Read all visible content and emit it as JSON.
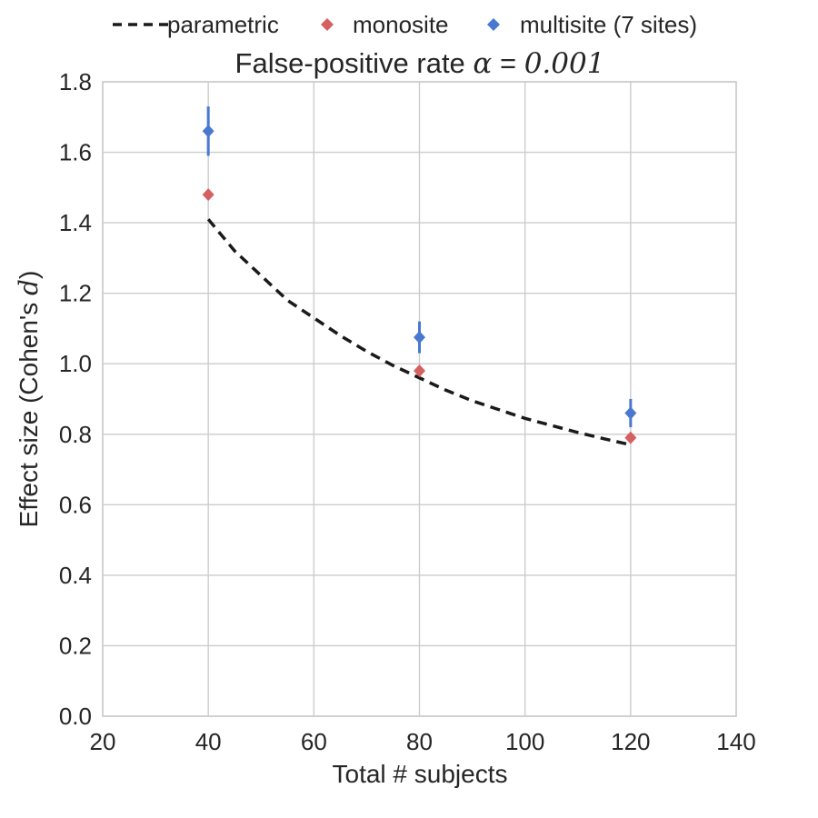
{
  "chart_data": {
    "type": "scatter",
    "title": {
      "prefix": "False-positive rate ",
      "symbol": "α",
      "equals": " = ",
      "value": "0.001"
    },
    "xlabel": "Total # subjects",
    "ylabel": {
      "prefix": "Effect size (Cohen's ",
      "symbol": "d",
      "suffix": ")"
    },
    "xlim": [
      20,
      140
    ],
    "ylim": [
      0.0,
      1.8
    ],
    "xticks": [
      20,
      40,
      60,
      80,
      100,
      120,
      140
    ],
    "xtick_labels": [
      "20",
      "40",
      "60",
      "80",
      "100",
      "120",
      "140"
    ],
    "yticks": [
      0.0,
      0.2,
      0.4,
      0.6,
      0.8,
      1.0,
      1.2,
      1.4,
      1.6,
      1.8
    ],
    "ytick_labels": [
      "0.0",
      "0.2",
      "0.4",
      "0.6",
      "0.8",
      "1.0",
      "1.2",
      "1.4",
      "1.6",
      "1.8"
    ],
    "grid": true,
    "legend_position": "top (outside plot, above title)",
    "series": [
      {
        "name": "parametric",
        "kind": "dashed-line",
        "color": "#1a1a1a",
        "x": [
          40,
          45,
          50,
          55,
          60,
          65,
          70,
          75,
          80,
          85,
          90,
          95,
          100,
          105,
          110,
          115,
          120
        ],
        "y": [
          1.41,
          1.32,
          1.25,
          1.18,
          1.13,
          1.08,
          1.035,
          0.995,
          0.96,
          0.925,
          0.895,
          0.87,
          0.845,
          0.825,
          0.805,
          0.787,
          0.77
        ]
      },
      {
        "name": "monosite",
        "kind": "diamond-markers",
        "color": "#d65f5f",
        "x": [
          40,
          80,
          120
        ],
        "y": [
          1.48,
          0.98,
          0.79
        ]
      },
      {
        "name": "multisite (7 sites)",
        "kind": "diamond-markers-errorbars",
        "color": "#4878cf",
        "x": [
          40,
          80,
          120
        ],
        "y": [
          1.66,
          1.075,
          0.86
        ],
        "err_low": [
          1.59,
          1.03,
          0.82
        ],
        "err_high": [
          1.73,
          1.12,
          0.9
        ]
      }
    ]
  }
}
